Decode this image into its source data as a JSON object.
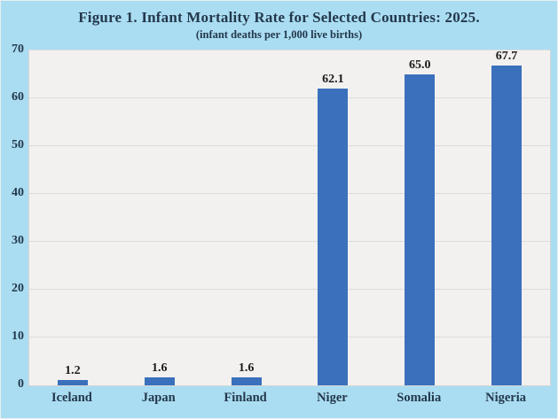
{
  "figure": {
    "title": "Figure 1. Infant Mortality Rate for Selected Countries: 2025.",
    "subtitle": "(infant deaths per 1,000 live births)"
  },
  "chart_data": {
    "type": "bar",
    "title": "Figure 1. Infant Mortality Rate for Selected Countries: 2025.",
    "subtitle": "(infant deaths per 1,000 live births)",
    "categories": [
      "Iceland",
      "Japan",
      "Finland",
      "Niger",
      "Somalia",
      "Nigeria"
    ],
    "values": [
      1.2,
      1.6,
      1.6,
      62.1,
      65.0,
      67.7
    ],
    "value_labels": [
      "1.2",
      "1.6",
      "1.6",
      "62.1",
      "65.0",
      "67.7"
    ],
    "xlabel": "",
    "ylabel": "",
    "ylim": [
      0,
      70
    ],
    "yticks": [
      0,
      10,
      20,
      30,
      40,
      50,
      60,
      70
    ],
    "grid": "horizontal",
    "legend": "none",
    "colors": {
      "bar": "#3a70bc",
      "background": "#aaddf2",
      "plot_background": "#f2f1ef",
      "gridline": "#dcdcdc",
      "plot_border": "#d6d5d3",
      "title_text": "#24384c",
      "axis_text": "#24384c",
      "data_label_text": "#1b1b1b"
    }
  }
}
